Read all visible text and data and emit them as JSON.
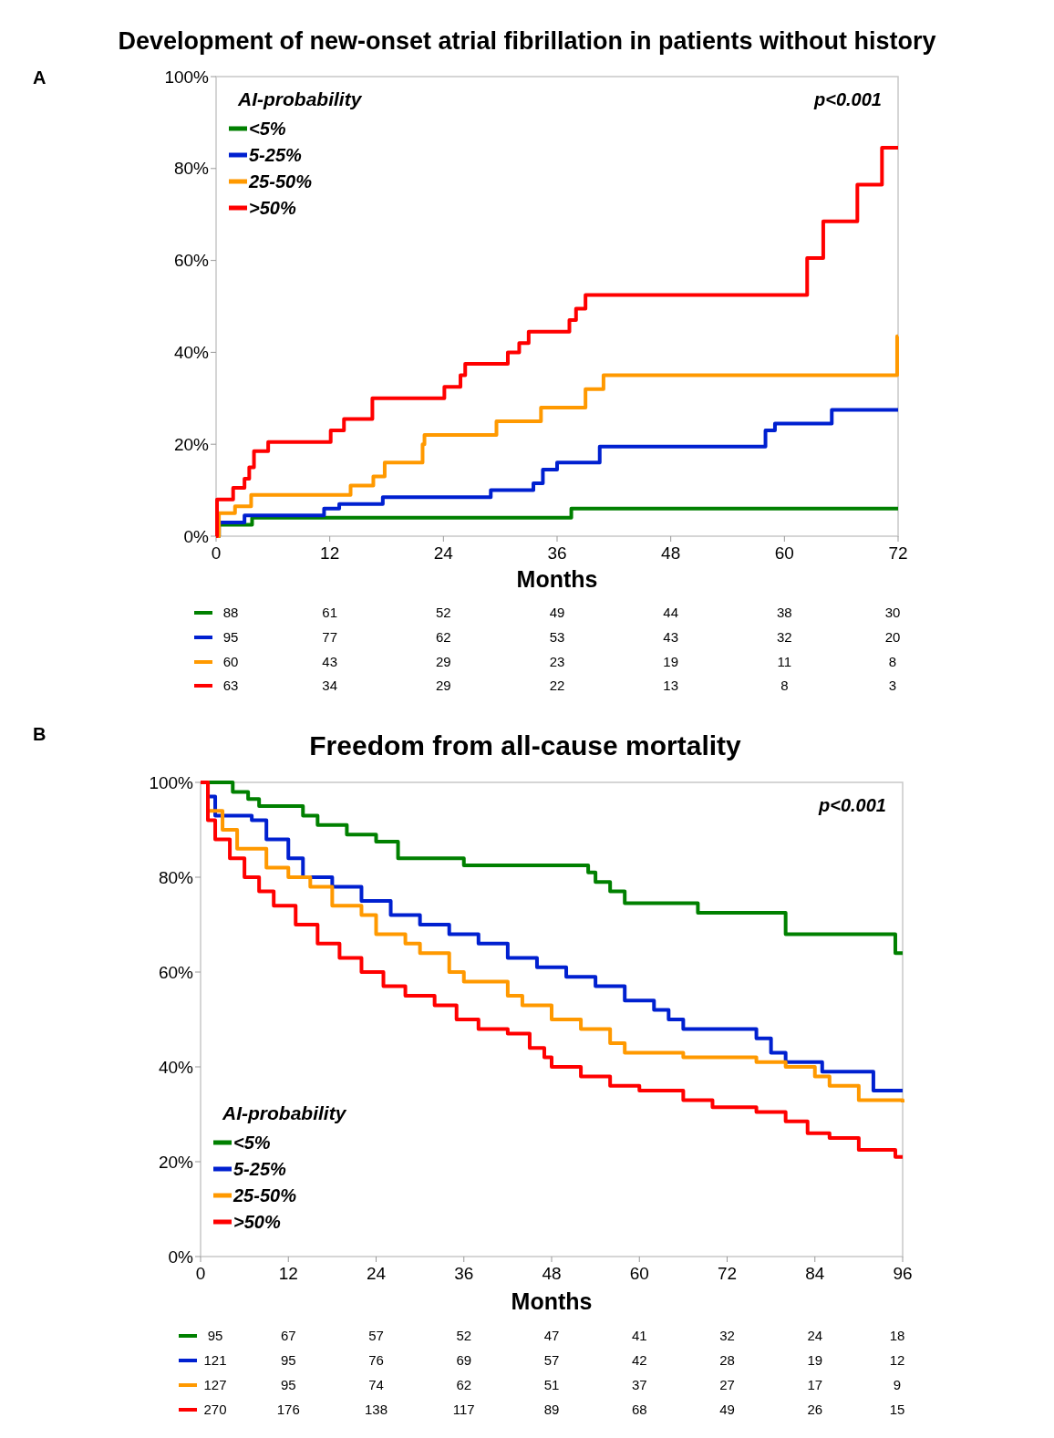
{
  "chart_data": [
    {
      "type": "step",
      "title": "Development of new-onset atrial fibrillation in patients without history",
      "xlabel": "Months",
      "legend_title": "AI-probability",
      "legend": "top left",
      "grid": false,
      "line_style": "solid",
      "xlim": [
        0,
        72
      ],
      "xticks": [
        0,
        12,
        24,
        36,
        48,
        60,
        72
      ],
      "ylim": [
        0,
        100
      ],
      "yticks": [
        {
          "value": 0,
          "label": "0%"
        },
        {
          "value": 20,
          "label": "20%"
        },
        {
          "value": 40,
          "label": "40%"
        },
        {
          "value": 60,
          "label": "60%"
        },
        {
          "value": 80,
          "label": "80%"
        },
        {
          "value": 100,
          "label": "100%"
        }
      ],
      "annotations": [
        "A",
        "p<0.001",
        "88 61 52 49 44 38 30",
        "95 77 62 53 43 32 20",
        "60 43 29 23 19 11 8",
        "63 34 29 22 13 8 3"
      ],
      "series": [
        {
          "name": "<5%",
          "color": "#008000",
          "x": [
            0,
            0.3,
            3.8,
            37.5,
            72
          ],
          "values": [
            0,
            2.5,
            4,
            6,
            6
          ]
        },
        {
          "name": "5-25%",
          "color": "#0020d0",
          "x": [
            0,
            0.3,
            3,
            11.4,
            13,
            17.6,
            29,
            33.5,
            34.5,
            36,
            40.5,
            58,
            59,
            65,
            72
          ],
          "values": [
            0,
            3,
            4.5,
            6,
            7,
            8.5,
            10,
            11.5,
            14.5,
            16,
            19.5,
            23,
            24.5,
            27.5,
            27.5
          ]
        },
        {
          "name": "25-50%",
          "color": "#ff9900",
          "x": [
            0,
            0.3,
            2,
            3.7,
            14.2,
            16.6,
            17.8,
            21.8,
            22,
            29.6,
            34.3,
            39,
            40.9,
            71.9,
            72
          ],
          "values": [
            0,
            5,
            6.5,
            9,
            11,
            13,
            16,
            20,
            22,
            25,
            28,
            32,
            35,
            43.5,
            43.5
          ]
        },
        {
          "name": ">50%",
          "color": "#ff0000",
          "x": [
            0,
            0.1,
            1.8,
            3,
            3.5,
            4,
            5.5,
            12.1,
            13.5,
            16.5,
            24.1,
            25.8,
            26.3,
            30.8,
            32,
            33,
            37.3,
            38,
            39,
            62.4,
            64.1,
            67.7,
            70.3,
            72
          ],
          "values": [
            0,
            8,
            10.5,
            12.5,
            15,
            18.5,
            20.5,
            23,
            25.5,
            30,
            32.5,
            35,
            37.5,
            40,
            42,
            44.5,
            47,
            49.5,
            52.5,
            60.5,
            68.5,
            76.5,
            84.5,
            84.5
          ]
        }
      ]
    },
    {
      "type": "step",
      "title": "Freedom from all-cause mortality",
      "xlabel": "Months",
      "legend_title": "AI-probability",
      "legend": "bottom left",
      "grid": false,
      "line_style": "solid",
      "xlim": [
        0,
        96
      ],
      "xticks": [
        0,
        12,
        24,
        36,
        48,
        60,
        72,
        84,
        96
      ],
      "ylim": [
        0,
        100
      ],
      "yticks": [
        {
          "value": 0,
          "label": "0%"
        },
        {
          "value": 20,
          "label": "20%"
        },
        {
          "value": 40,
          "label": "40%"
        },
        {
          "value": 60,
          "label": "60%"
        },
        {
          "value": 80,
          "label": "80%"
        },
        {
          "value": 100,
          "label": "100%"
        }
      ],
      "annotations": [
        "B",
        "p<0.001",
        "95 67 57 52 47 41 32 24 18",
        "121 95 76 69 57 42 28 19 12",
        "127 95 74 62 51 37 27 17 9",
        "270 176 138 117 89 68 49 26 15"
      ],
      "series": [
        {
          "name": "<5%",
          "color": "#008000",
          "x": [
            0,
            4.4,
            6.5,
            8,
            14,
            16,
            20,
            24,
            27,
            36,
            53,
            54,
            56,
            58,
            68,
            80,
            95,
            96
          ],
          "values": [
            100,
            98,
            96.5,
            95,
            93,
            91,
            89,
            87.5,
            84,
            82.5,
            81,
            79,
            77,
            74.5,
            72.5,
            68,
            64,
            64
          ]
        },
        {
          "name": "5-25%",
          "color": "#0020d0",
          "x": [
            0,
            1,
            2,
            7,
            9,
            12,
            14,
            18,
            22,
            26,
            30,
            34,
            38,
            42,
            46,
            50,
            54,
            58,
            62,
            64,
            66,
            76,
            78,
            80,
            85,
            92,
            96
          ],
          "values": [
            100,
            97,
            93,
            92,
            88,
            84,
            80,
            78,
            75,
            72,
            70,
            68,
            66,
            63,
            61,
            59,
            57,
            54,
            52,
            50,
            48,
            46,
            43,
            41,
            39,
            35,
            35
          ]
        },
        {
          "name": "25-50%",
          "color": "#ff9900",
          "x": [
            0,
            1,
            3,
            5,
            9,
            12,
            15,
            18,
            22,
            24,
            28,
            30,
            34,
            36,
            42,
            44,
            48,
            52,
            56,
            58,
            66,
            76,
            80,
            84,
            86,
            90,
            96
          ],
          "values": [
            100,
            94,
            90,
            86,
            82,
            80,
            78,
            74,
            72,
            68,
            66,
            64,
            60,
            58,
            55,
            53,
            50,
            48,
            45,
            43,
            42,
            41,
            40,
            38,
            36,
            33,
            32.5
          ]
        },
        {
          "name": ">50%",
          "color": "#ff0000",
          "x": [
            0,
            1,
            2,
            4,
            6,
            8,
            10,
            13,
            16,
            19,
            22,
            25,
            28,
            32,
            35,
            38,
            42,
            45,
            47,
            48,
            52,
            56,
            60,
            66,
            70,
            76,
            80,
            83,
            86,
            90,
            95,
            96
          ],
          "values": [
            100,
            92,
            88,
            84,
            80,
            77,
            74,
            70,
            66,
            63,
            60,
            57,
            55,
            53,
            50,
            48,
            47,
            44,
            42,
            40,
            38,
            36,
            35,
            33,
            31.5,
            30.5,
            28.5,
            26,
            25,
            22.5,
            21,
            21
          ]
        }
      ]
    }
  ]
}
